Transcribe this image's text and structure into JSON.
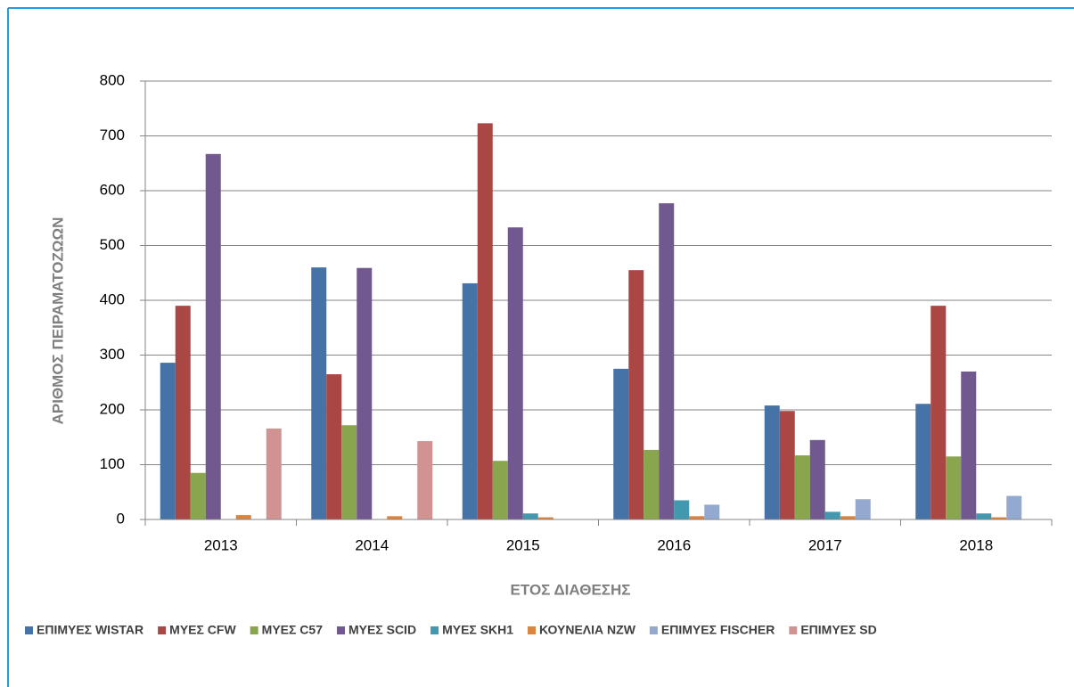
{
  "chart_data": {
    "type": "bar",
    "x_label": "ΕΤΟΣ ΔΙΑΘΕΣΗΣ",
    "y_label": "ΑΡΙΘΜΟΣ ΠΕΙΡΑΜΑΤΟΖΩΩΝ",
    "categories": [
      "2013",
      "2014",
      "2015",
      "2016",
      "2017",
      "2018"
    ],
    "series": [
      {
        "name": "ΕΠΙΜΥΕΣ WISTAR",
        "color": "#4572a7",
        "values": [
          286,
          460,
          431,
          275,
          208,
          211
        ]
      },
      {
        "name": "ΜΥΕΣ CFW",
        "color": "#aa4643",
        "values": [
          390,
          265,
          723,
          455,
          198,
          390
        ]
      },
      {
        "name": "ΜΥΕΣ C57",
        "color": "#89a54e",
        "values": [
          85,
          172,
          107,
          127,
          117,
          115
        ]
      },
      {
        "name": "ΜΥΕΣ SCID",
        "color": "#71588f",
        "values": [
          667,
          459,
          533,
          577,
          145,
          270
        ]
      },
      {
        "name": "ΜΥΕΣ SKH1",
        "color": "#4198af",
        "values": [
          0,
          0,
          11,
          35,
          14,
          11
        ]
      },
      {
        "name": "ΚΟΥΝΕΛΙΑ NZW",
        "color": "#db843d",
        "values": [
          8,
          6,
          4,
          6,
          6,
          4
        ]
      },
      {
        "name": "ΕΠΙΜΥΕΣ FISCHER",
        "color": "#93a9cf",
        "values": [
          0,
          0,
          0,
          27,
          37,
          43
        ]
      },
      {
        "name": "ΕΠΙΜΥΕΣ SD",
        "color": "#d19392",
        "values": [
          166,
          143,
          0,
          0,
          0,
          0
        ]
      }
    ],
    "ylim": [
      0,
      800
    ],
    "yticks": [
      0,
      100,
      200,
      300,
      400,
      500,
      600,
      700,
      800
    ],
    "grid": true,
    "legend": "bottom"
  }
}
